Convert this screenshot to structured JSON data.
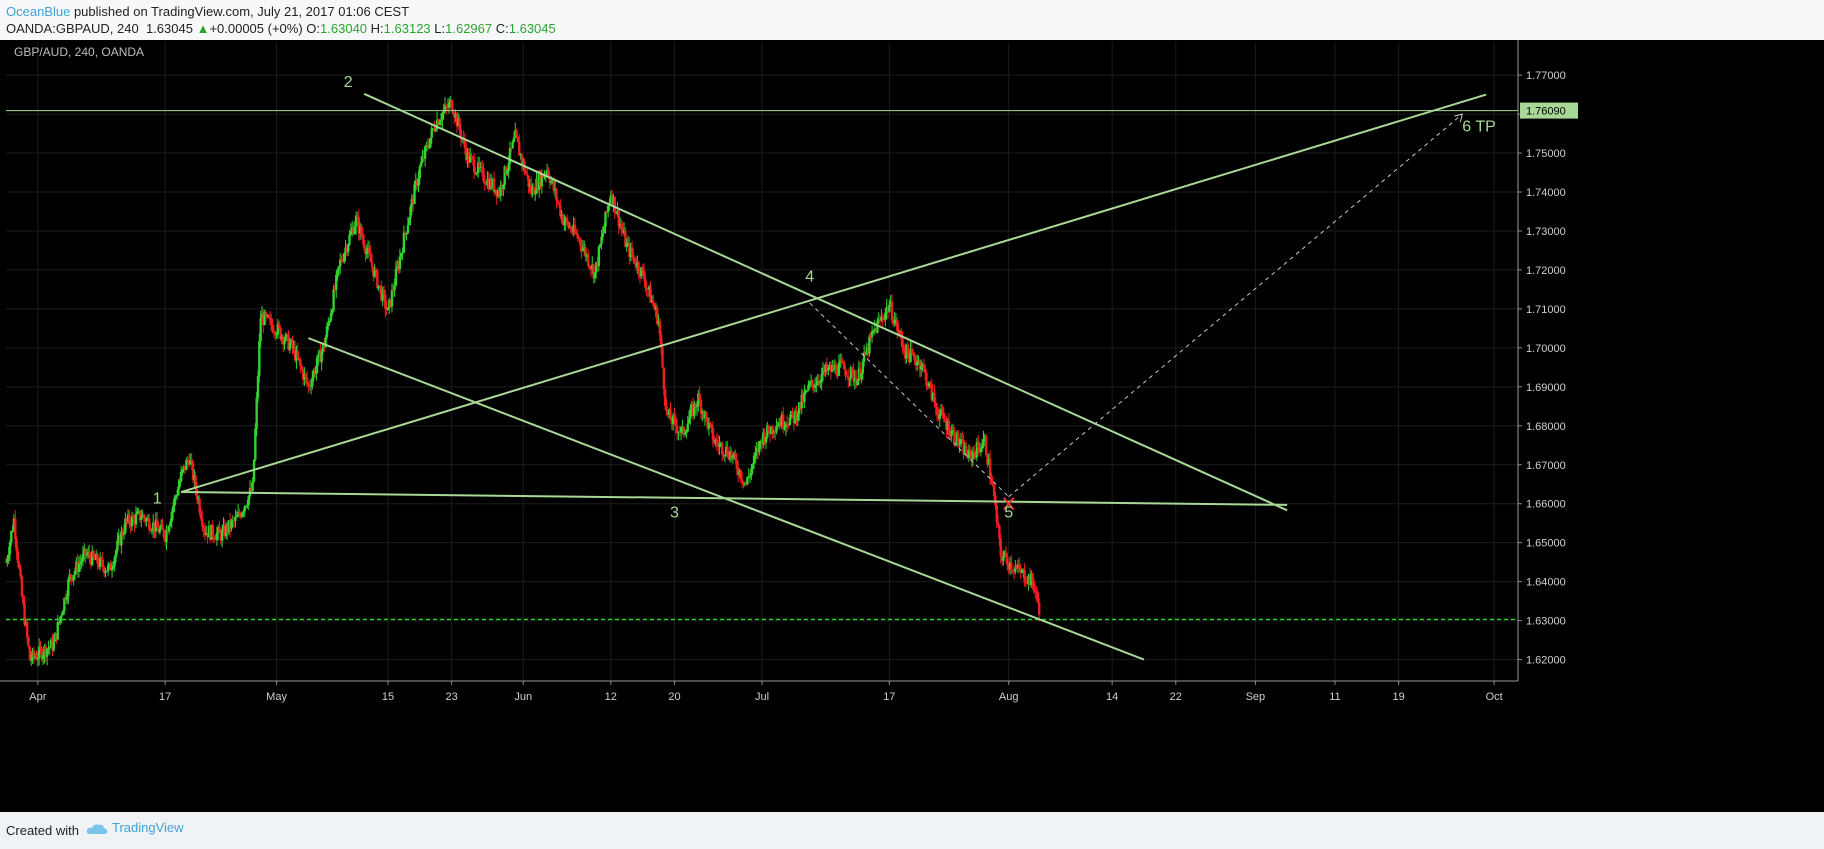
{
  "header": {
    "author": "OceanBlue",
    "published_text": "published on TradingView.com, July 21, 2017 01:06 CEST",
    "symbol": "OANDA:GBPAUD, 240",
    "last": "1.63045",
    "change_arrow": "▲",
    "change": "+0.00005 (+0%)",
    "open_label": "O:",
    "open": "1.63040",
    "high_label": "H:",
    "high": "1.63123",
    "low_label": "L:",
    "low": "1.62967",
    "close_label": "C:",
    "close": "1.63045"
  },
  "footer": {
    "created_with": "Created with",
    "brand": "TradingView",
    "brand_icon": "cloud-icon"
  },
  "chart_data": {
    "type": "candlestick",
    "title": "GBP/AUD, 240, OANDA",
    "price_axis": {
      "labels": [
        "1.77000",
        "1.76000",
        "1.75000",
        "1.74000",
        "1.73000",
        "1.72000",
        "1.71000",
        "1.70000",
        "1.69000",
        "1.68000",
        "1.67000",
        "1.66000",
        "1.65000",
        "1.64000",
        "1.63000",
        "1.62000"
      ],
      "values": [
        1.77,
        1.76,
        1.75,
        1.74,
        1.73,
        1.72,
        1.71,
        1.7,
        1.69,
        1.68,
        1.67,
        1.66,
        1.65,
        1.64,
        1.63,
        1.62
      ],
      "highlight_label": "1.76090",
      "highlight_value": 1.7609,
      "ylim": [
        1.6145,
        1.7785
      ]
    },
    "time_axis": {
      "labels": [
        "Apr",
        "17",
        "May",
        "15",
        "23",
        "Jun",
        "12",
        "20",
        "Jul",
        "17",
        "Aug",
        "14",
        "22",
        "Sep",
        "11",
        "19",
        "Oct"
      ],
      "values": [
        "2017-04-01",
        "2017-04-17",
        "2017-05-01",
        "2017-05-15",
        "2017-05-23",
        "2017-06-01",
        "2017-06-12",
        "2017-06-20",
        "2017-07-01",
        "2017-07-17",
        "2017-08-01",
        "2017-08-14",
        "2017-08-22",
        "2017-09-01",
        "2017-09-11",
        "2017-09-19",
        "2017-10-01"
      ],
      "xlim": [
        "2017-03-28",
        "2017-10-04"
      ]
    },
    "price_path": [
      [
        "2017-03-28",
        1.645
      ],
      [
        "2017-03-29",
        1.656
      ],
      [
        "2017-03-30",
        1.636
      ],
      [
        "2017-03-31",
        1.62
      ],
      [
        "2017-04-03",
        1.624
      ],
      [
        "2017-04-05",
        1.641
      ],
      [
        "2017-04-07",
        1.647
      ],
      [
        "2017-04-10",
        1.643
      ],
      [
        "2017-04-12",
        1.655
      ],
      [
        "2017-04-14",
        1.657
      ],
      [
        "2017-04-17",
        1.652
      ],
      [
        "2017-04-19",
        1.667
      ],
      [
        "2017-04-20",
        1.672
      ],
      [
        "2017-04-22",
        1.653
      ],
      [
        "2017-04-24",
        1.652
      ],
      [
        "2017-04-26",
        1.656
      ],
      [
        "2017-04-28",
        1.664
      ],
      [
        "2017-04-29",
        1.708
      ],
      [
        "2017-05-01",
        1.705
      ],
      [
        "2017-05-03",
        1.7
      ],
      [
        "2017-05-05",
        1.69
      ],
      [
        "2017-05-07",
        1.701
      ],
      [
        "2017-05-09",
        1.722
      ],
      [
        "2017-05-11",
        1.733
      ],
      [
        "2017-05-13",
        1.721
      ],
      [
        "2017-05-15",
        1.709
      ],
      [
        "2017-05-17",
        1.728
      ],
      [
        "2017-05-19",
        1.746
      ],
      [
        "2017-05-21",
        1.758
      ],
      [
        "2017-05-23",
        1.763
      ],
      [
        "2017-05-25",
        1.749
      ],
      [
        "2017-05-27",
        1.744
      ],
      [
        "2017-05-29",
        1.74
      ],
      [
        "2017-05-31",
        1.754
      ],
      [
        "2017-06-02",
        1.74
      ],
      [
        "2017-06-04",
        1.746
      ],
      [
        "2017-06-06",
        1.733
      ],
      [
        "2017-06-08",
        1.728
      ],
      [
        "2017-06-10",
        1.719
      ],
      [
        "2017-06-12",
        1.74
      ],
      [
        "2017-06-14",
        1.726
      ],
      [
        "2017-06-16",
        1.719
      ],
      [
        "2017-06-18",
        1.707
      ],
      [
        "2017-06-19",
        1.683
      ],
      [
        "2017-06-21",
        1.678
      ],
      [
        "2017-06-23",
        1.687
      ],
      [
        "2017-06-25",
        1.676
      ],
      [
        "2017-06-27",
        1.673
      ],
      [
        "2017-06-29",
        1.665
      ],
      [
        "2017-07-01",
        1.677
      ],
      [
        "2017-07-03",
        1.681
      ],
      [
        "2017-07-05",
        1.682
      ],
      [
        "2017-07-07",
        1.69
      ],
      [
        "2017-07-09",
        1.694
      ],
      [
        "2017-07-11",
        1.695
      ],
      [
        "2017-07-13",
        1.692
      ],
      [
        "2017-07-15",
        1.704
      ],
      [
        "2017-07-17",
        1.711
      ],
      [
        "2017-07-19",
        1.699
      ],
      [
        "2017-07-21",
        1.696
      ],
      [
        "2017-07-23",
        1.684
      ],
      [
        "2017-07-25",
        1.678
      ],
      [
        "2017-07-27",
        1.672
      ],
      [
        "2017-07-29",
        1.676
      ],
      [
        "2017-07-30",
        1.664
      ],
      [
        "2017-07-31",
        1.647
      ],
      [
        "2017-08-02",
        1.643
      ],
      [
        "2017-08-04",
        1.64
      ],
      [
        "2017-08-05",
        1.632
      ]
    ],
    "annotations": {
      "wave_labels": [
        "1",
        "2",
        "3",
        "4",
        "5",
        "6 TP"
      ],
      "horizontal_line": 1.7609,
      "current_price_line": 1.6303
    }
  }
}
